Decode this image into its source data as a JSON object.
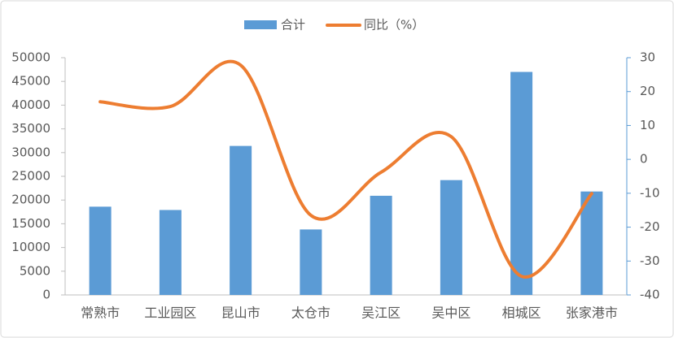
{
  "chart_data": {
    "type": "bar-line",
    "categories": [
      "常熟市",
      "工业园区",
      "昆山市",
      "太仓市",
      "吴江区",
      "吴中区",
      "相城区",
      "张家港市"
    ],
    "series": [
      {
        "name": "合计",
        "type": "bar",
        "color": "#5b9bd5",
        "values": [
          18600,
          17900,
          31400,
          13800,
          20900,
          24200,
          47000,
          21800
        ]
      },
      {
        "name": "同比（%）",
        "type": "line",
        "axis": "y2",
        "color": "#ed7d31",
        "values": [
          17.0,
          15.6,
          27.8,
          -16.5,
          -3.8,
          6.7,
          -34.5,
          -10.1
        ]
      }
    ],
    "ylim": [
      0,
      50000
    ],
    "yticks": [
      0,
      5000,
      10000,
      15000,
      20000,
      25000,
      30000,
      35000,
      40000,
      45000,
      50000
    ],
    "y2lim": [
      -40,
      30
    ],
    "y2ticks": [
      -40,
      -30,
      -20,
      -10,
      0,
      10,
      20,
      30
    ],
    "legend": "top"
  }
}
